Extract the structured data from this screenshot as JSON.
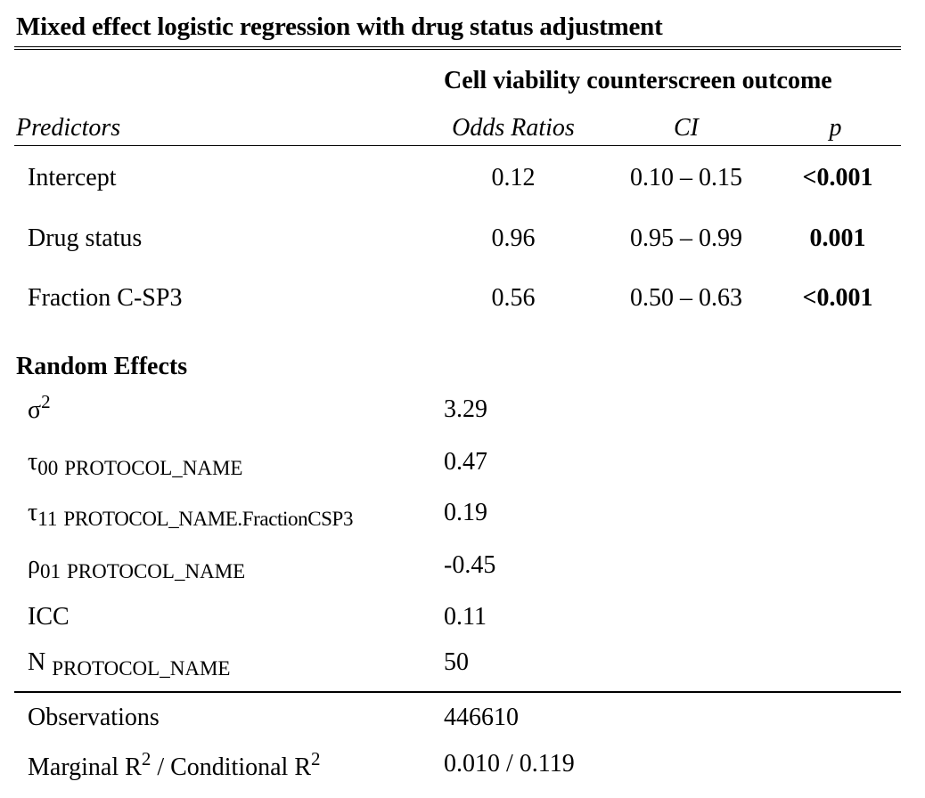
{
  "title": "Mixed effect logistic regression with drug status adjustment",
  "outcome_header": "Cell viability counterscreen outcome",
  "columns": {
    "predictors": "Predictors",
    "odds_ratios": "Odds Ratios",
    "ci": "CI",
    "p": "p"
  },
  "rows": [
    {
      "label": "Intercept",
      "or": "0.12",
      "ci": "0.10 – 0.15",
      "p": "<0.001"
    },
    {
      "label": "Drug status",
      "or": "0.96",
      "ci": "0.95 – 0.99",
      "p": "0.001"
    },
    {
      "label": "Fraction C-SP3",
      "or": "0.56",
      "ci": "0.50 – 0.63",
      "p": "<0.001"
    }
  ],
  "random_effects": {
    "heading": "Random Effects",
    "sigma2": {
      "symbol": "σ",
      "sup": "2",
      "value": "3.29"
    },
    "tau00": {
      "symbol": "τ",
      "sub": "00",
      "name": "PROTOCOL_NAME",
      "value": "0.47"
    },
    "tau11": {
      "symbol": "τ",
      "sub": "11",
      "name": "PROTOCOL_NAME.FractionCSP3",
      "value": "0.19"
    },
    "rho01": {
      "symbol": "ρ",
      "sub": "01",
      "name": "PROTOCOL_NAME",
      "value": "-0.45"
    },
    "icc": {
      "label": "ICC",
      "value": "0.11"
    },
    "n": {
      "label": "N",
      "name": "PROTOCOL_NAME",
      "value": "50"
    }
  },
  "footer": {
    "observations": {
      "label": "Observations",
      "value": "446610"
    },
    "r2": {
      "marginal": "Marginal R",
      "sep": " / Conditional R",
      "sup": "2",
      "value": "0.010 / 0.119"
    }
  }
}
